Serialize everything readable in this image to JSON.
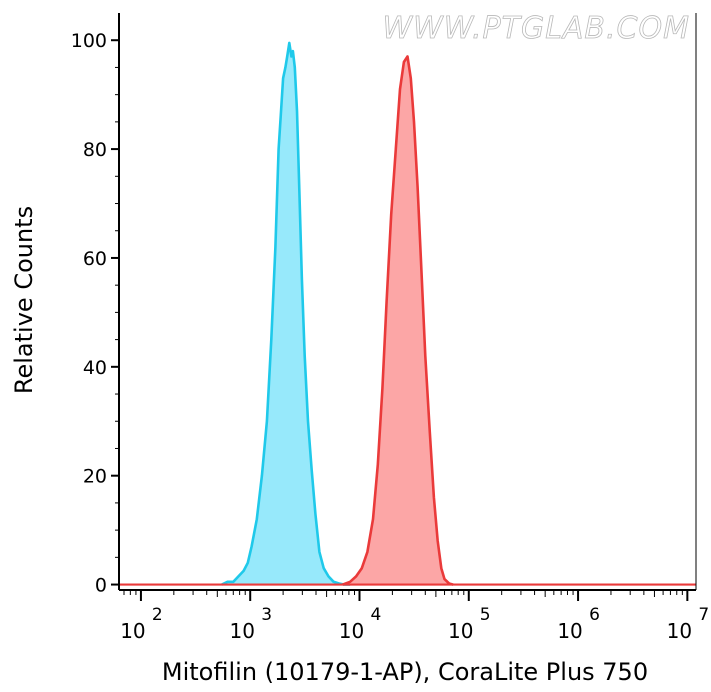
{
  "watermark": "WWW.PTGLAB.COM",
  "chart_data": {
    "type": "area",
    "xlabel": "Mitofilin (10179-1-AP), CoraLite Plus 750",
    "ylabel": "Relative Counts",
    "xscale": "log",
    "xlim": [
      63,
      12000000
    ],
    "ylim": [
      -1,
      105
    ],
    "x_ticks": [
      {
        "value": 100,
        "base": "10",
        "exp": "2"
      },
      {
        "value": 1000,
        "base": "10",
        "exp": "3"
      },
      {
        "value": 10000,
        "base": "10",
        "exp": "4"
      },
      {
        "value": 100000,
        "base": "10",
        "exp": "5"
      },
      {
        "value": 1000000,
        "base": "10",
        "exp": "6"
      },
      {
        "value": 10000000,
        "base": "10",
        "exp": "7"
      }
    ],
    "y_ticks": [
      {
        "value": 0,
        "label": "0"
      },
      {
        "value": 20,
        "label": "20"
      },
      {
        "value": 40,
        "label": "40"
      },
      {
        "value": 60,
        "label": "60"
      },
      {
        "value": 80,
        "label": "80"
      },
      {
        "value": 100,
        "label": "100"
      }
    ],
    "grid": false,
    "legend": "none",
    "series": [
      {
        "color": "#1fc9ea",
        "fill": "#97e9fb",
        "x": [
          550,
          620,
          700,
          780,
          870,
          950,
          1030,
          1150,
          1280,
          1420,
          1560,
          1700,
          1820,
          1900,
          2000,
          2100,
          2180,
          2280,
          2380,
          2460,
          2560,
          2680,
          2820,
          2970,
          3150,
          3380,
          3650,
          3950,
          4300,
          4700,
          5200,
          5800,
          6500,
          7300,
          8200
        ],
        "y": [
          0,
          0.5,
          0.5,
          1.5,
          2.5,
          4,
          7,
          12,
          20,
          30,
          45,
          62,
          80,
          86,
          93,
          95,
          97,
          99.5,
          97,
          98,
          95,
          87,
          72,
          56,
          42,
          30,
          21,
          13,
          6,
          3,
          1.5,
          0.5,
          0.2,
          0,
          0
        ]
      },
      {
        "color": "#ea3a3a",
        "fill": "#fca6a6",
        "x": [
          7000,
          8200,
          9300,
          10500,
          11800,
          13300,
          14700,
          16200,
          17700,
          19500,
          21500,
          23500,
          25500,
          27500,
          29500,
          31500,
          34000,
          37000,
          40000,
          44000,
          48000,
          52000,
          56000,
          60000,
          66000,
          72000
        ],
        "y": [
          0,
          0.5,
          1.5,
          3,
          6,
          12,
          22,
          36,
          52,
          68,
          80,
          91,
          96,
          97,
          93,
          85,
          73,
          57,
          42,
          28,
          16,
          8,
          3,
          1,
          0.2,
          0
        ]
      }
    ]
  }
}
